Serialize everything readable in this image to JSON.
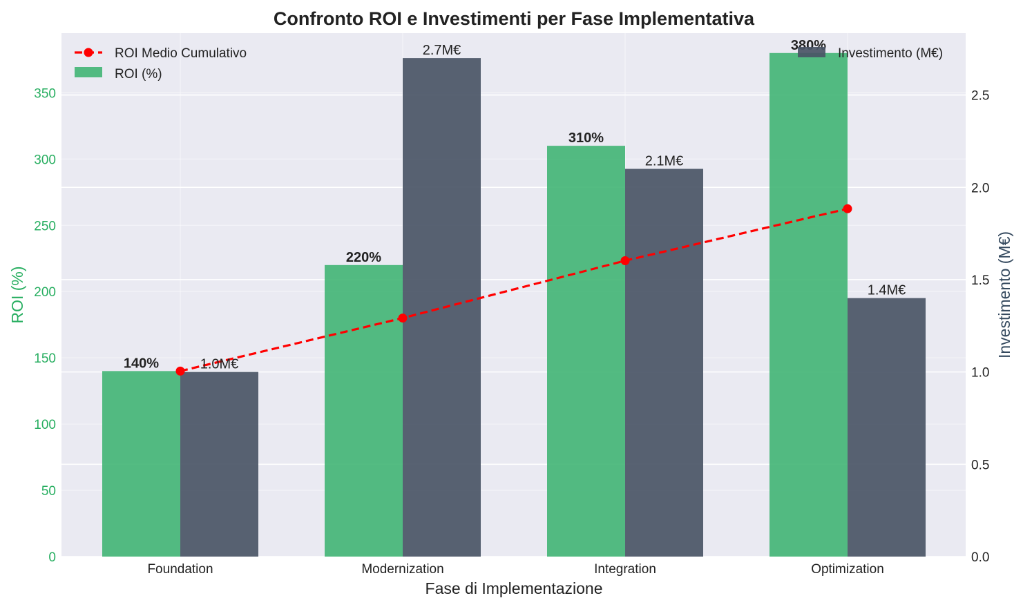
{
  "chart_data": {
    "type": "bar",
    "title": "Confronto ROI e Investimenti per Fase Implementativa",
    "xlabel": "Fase di Implementazione",
    "ylabel_left": "ROI (%)",
    "ylabel_right": "Investimento (M€)",
    "categories": [
      "Foundation",
      "Modernization",
      "Integration",
      "Optimization"
    ],
    "ylim_left": [
      0,
      395
    ],
    "ylim_right": [
      0,
      2.835
    ],
    "yticks_left": [
      "0",
      "50",
      "100",
      "150",
      "200",
      "250",
      "300",
      "350"
    ],
    "yticks_right": [
      "0.0",
      "0.5",
      "1.0",
      "1.5",
      "2.0",
      "2.5"
    ],
    "series": [
      {
        "name": "ROI (%)",
        "axis": "left",
        "kind": "bar",
        "color": "#3cb371",
        "values": [
          140,
          220,
          310,
          380
        ],
        "labels": [
          "140%",
          "220%",
          "310%",
          "380%"
        ]
      },
      {
        "name": "Investimento (M€)",
        "axis": "right",
        "kind": "bar",
        "color": "#4a5566",
        "values": [
          1.0,
          2.7,
          2.1,
          1.4
        ],
        "labels": [
          "1.0M€",
          "2.7M€",
          "2.1M€",
          "1.4M€"
        ]
      },
      {
        "name": "ROI Medio Cumulativo",
        "axis": "left",
        "kind": "line",
        "style": "dashed",
        "color": "#ff0000",
        "values": [
          140,
          180,
          223.3,
          262.5
        ]
      }
    ],
    "grid": true,
    "legend": {
      "left": "upper-left",
      "right": "upper-right"
    },
    "colors": {
      "background": "#eaeaf2",
      "roi_axis": "#27ae60",
      "inv_axis": "#34495e"
    }
  }
}
